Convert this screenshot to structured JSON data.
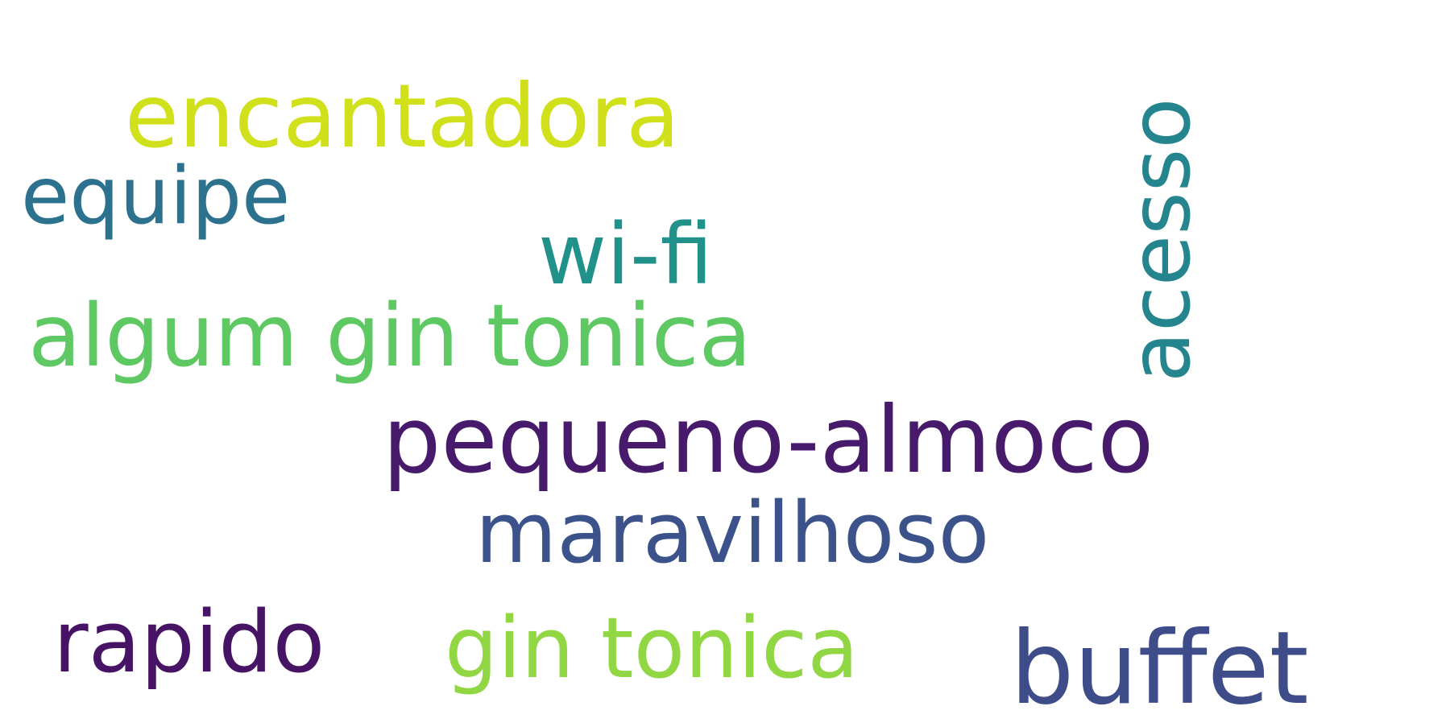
{
  "words": [
    {
      "text": "encantadora",
      "color": "#d0e11c"
    },
    {
      "text": "equipe",
      "color": "#2c728e"
    },
    {
      "text": "wi-fi",
      "color": "#21918c"
    },
    {
      "text": "algum gin tonica",
      "color": "#5ec962"
    },
    {
      "text": "acesso",
      "color": "#25858e"
    },
    {
      "text": "pequeno-almoco",
      "color": "#481a6c"
    },
    {
      "text": "maravilhoso",
      "color": "#3b528b"
    },
    {
      "text": "rapido",
      "color": "#471365"
    },
    {
      "text": "gin tonica",
      "color": "#90d743"
    },
    {
      "text": "buffet",
      "color": "#3e4c8a"
    }
  ]
}
